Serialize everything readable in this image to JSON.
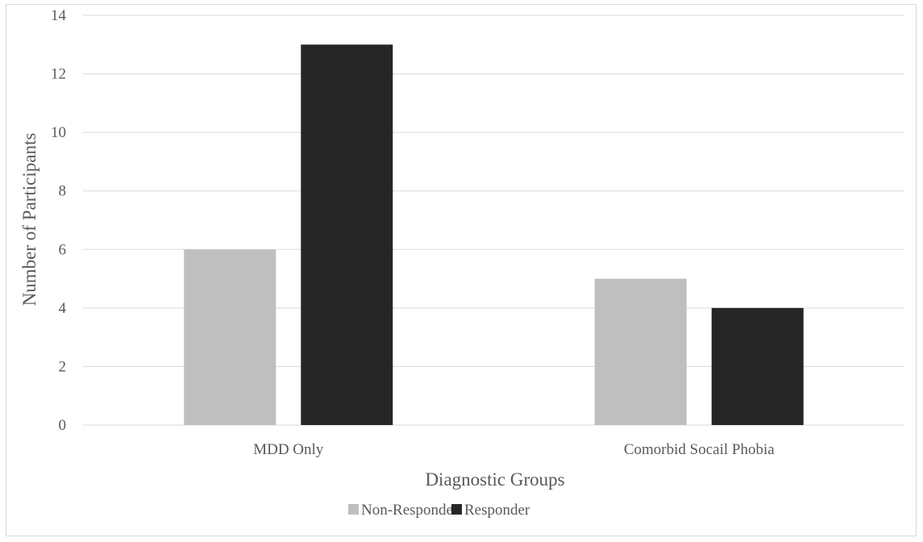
{
  "chart_data": {
    "type": "bar",
    "title": "",
    "xlabel": "Diagnostic Groups",
    "ylabel": "Number of Participants",
    "categories": [
      "MDD Only",
      "Comorbid Socail Phobia"
    ],
    "series": [
      {
        "name": "Non-Responder",
        "values": [
          6,
          5
        ],
        "color": "#bfbfbf"
      },
      {
        "name": "Responder",
        "values": [
          13,
          4
        ],
        "color": "#262626"
      }
    ],
    "ylim": [
      0,
      14
    ],
    "yticks": [
      0,
      2,
      4,
      6,
      8,
      10,
      12,
      14
    ],
    "grid": true,
    "legend_position": "bottom"
  }
}
